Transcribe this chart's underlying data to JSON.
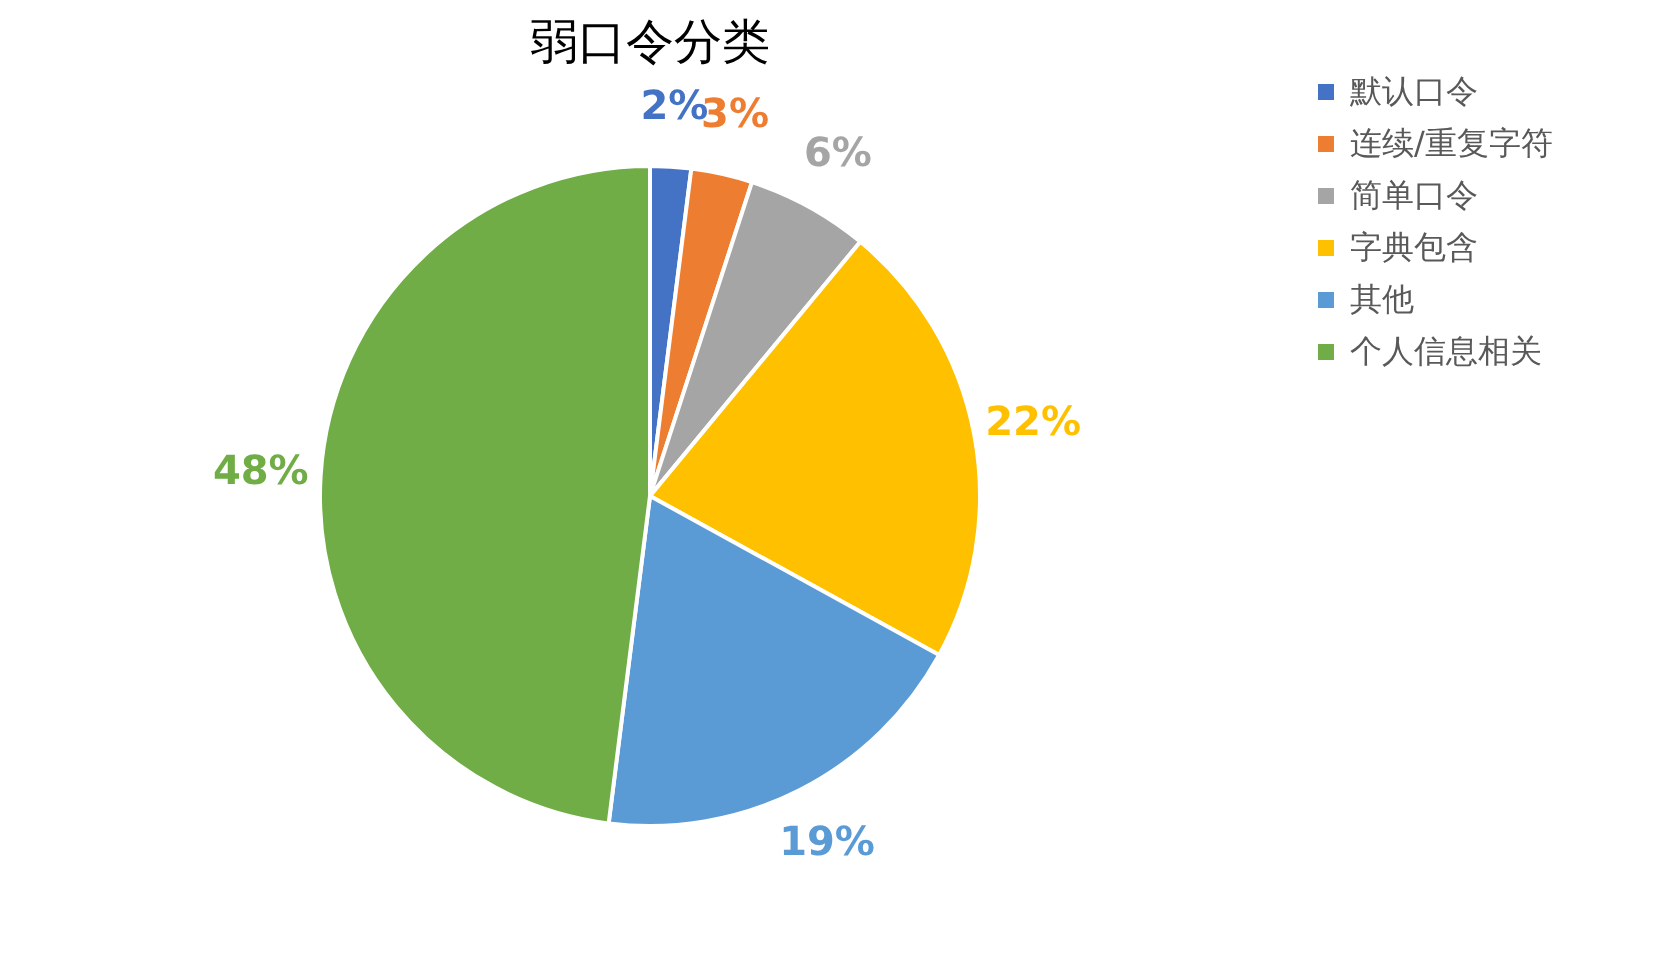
{
  "chart_data": {
    "type": "pie",
    "title": "弱口令分类",
    "categories": [
      "默认口令",
      "连续/重复字符",
      "简单口令",
      "字典包含",
      "其他",
      "个人信息相关"
    ],
    "values": [
      2,
      3,
      6,
      22,
      19,
      48
    ],
    "colors": [
      "#4472c4",
      "#ed7d31",
      "#a5a5a5",
      "#ffc000",
      "#5b9bd5",
      "#70ad47"
    ],
    "value_labels": [
      "2%",
      "3%",
      "6%",
      "22%",
      "19%",
      "48%"
    ],
    "legend": "right"
  }
}
